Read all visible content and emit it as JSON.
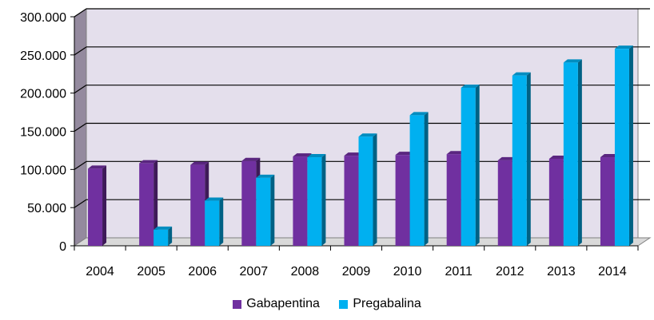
{
  "chart_data": {
    "type": "bar",
    "title": "",
    "xlabel": "",
    "ylabel": "",
    "categories": [
      "2004",
      "2005",
      "2006",
      "2007",
      "2008",
      "2009",
      "2010",
      "2011",
      "2012",
      "2013",
      "2014"
    ],
    "series": [
      {
        "name": "Gabapentina",
        "color": "#7030A0",
        "values": [
          101000,
          108000,
          106000,
          111000,
          117000,
          118000,
          119000,
          120000,
          112000,
          114000,
          116000
        ]
      },
      {
        "name": "Pregabalina",
        "color": "#00B0F0",
        "values": [
          0,
          21000,
          59000,
          89000,
          116000,
          143000,
          171000,
          207000,
          223000,
          240000,
          258000
        ]
      }
    ],
    "ylim": [
      0,
      300000
    ],
    "yticks": [
      0,
      50000,
      100000,
      150000,
      200000,
      250000,
      300000
    ],
    "ytick_labels": [
      "0",
      "50.000",
      "100.000",
      "150.000",
      "200.000",
      "250.000",
      "300.000"
    ],
    "grid": true,
    "legend_position": "bottom"
  }
}
